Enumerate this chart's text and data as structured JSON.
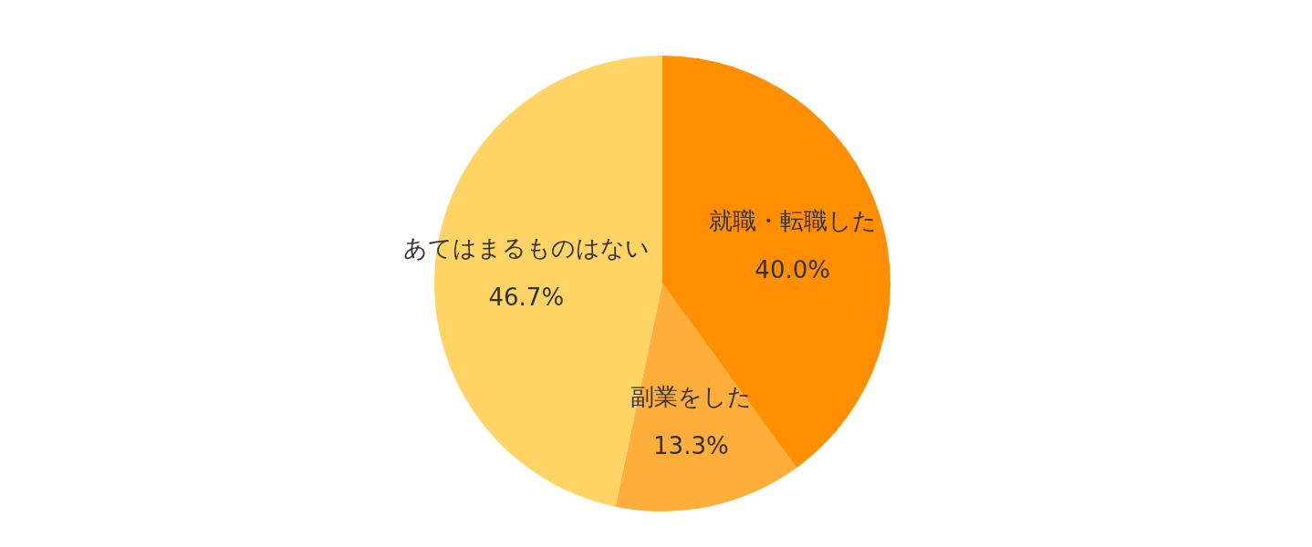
{
  "chart_data": {
    "type": "pie",
    "categories": [
      "就職・転職した",
      "副業をした",
      "あてはまるものはない"
    ],
    "values": [
      40.0,
      13.3,
      46.7
    ],
    "colors": [
      "#ff8f00",
      "#ffae3b",
      "#ffd464"
    ],
    "value_labels": [
      "40.0%",
      "13.3%",
      "46.7%"
    ],
    "legend": false
  }
}
